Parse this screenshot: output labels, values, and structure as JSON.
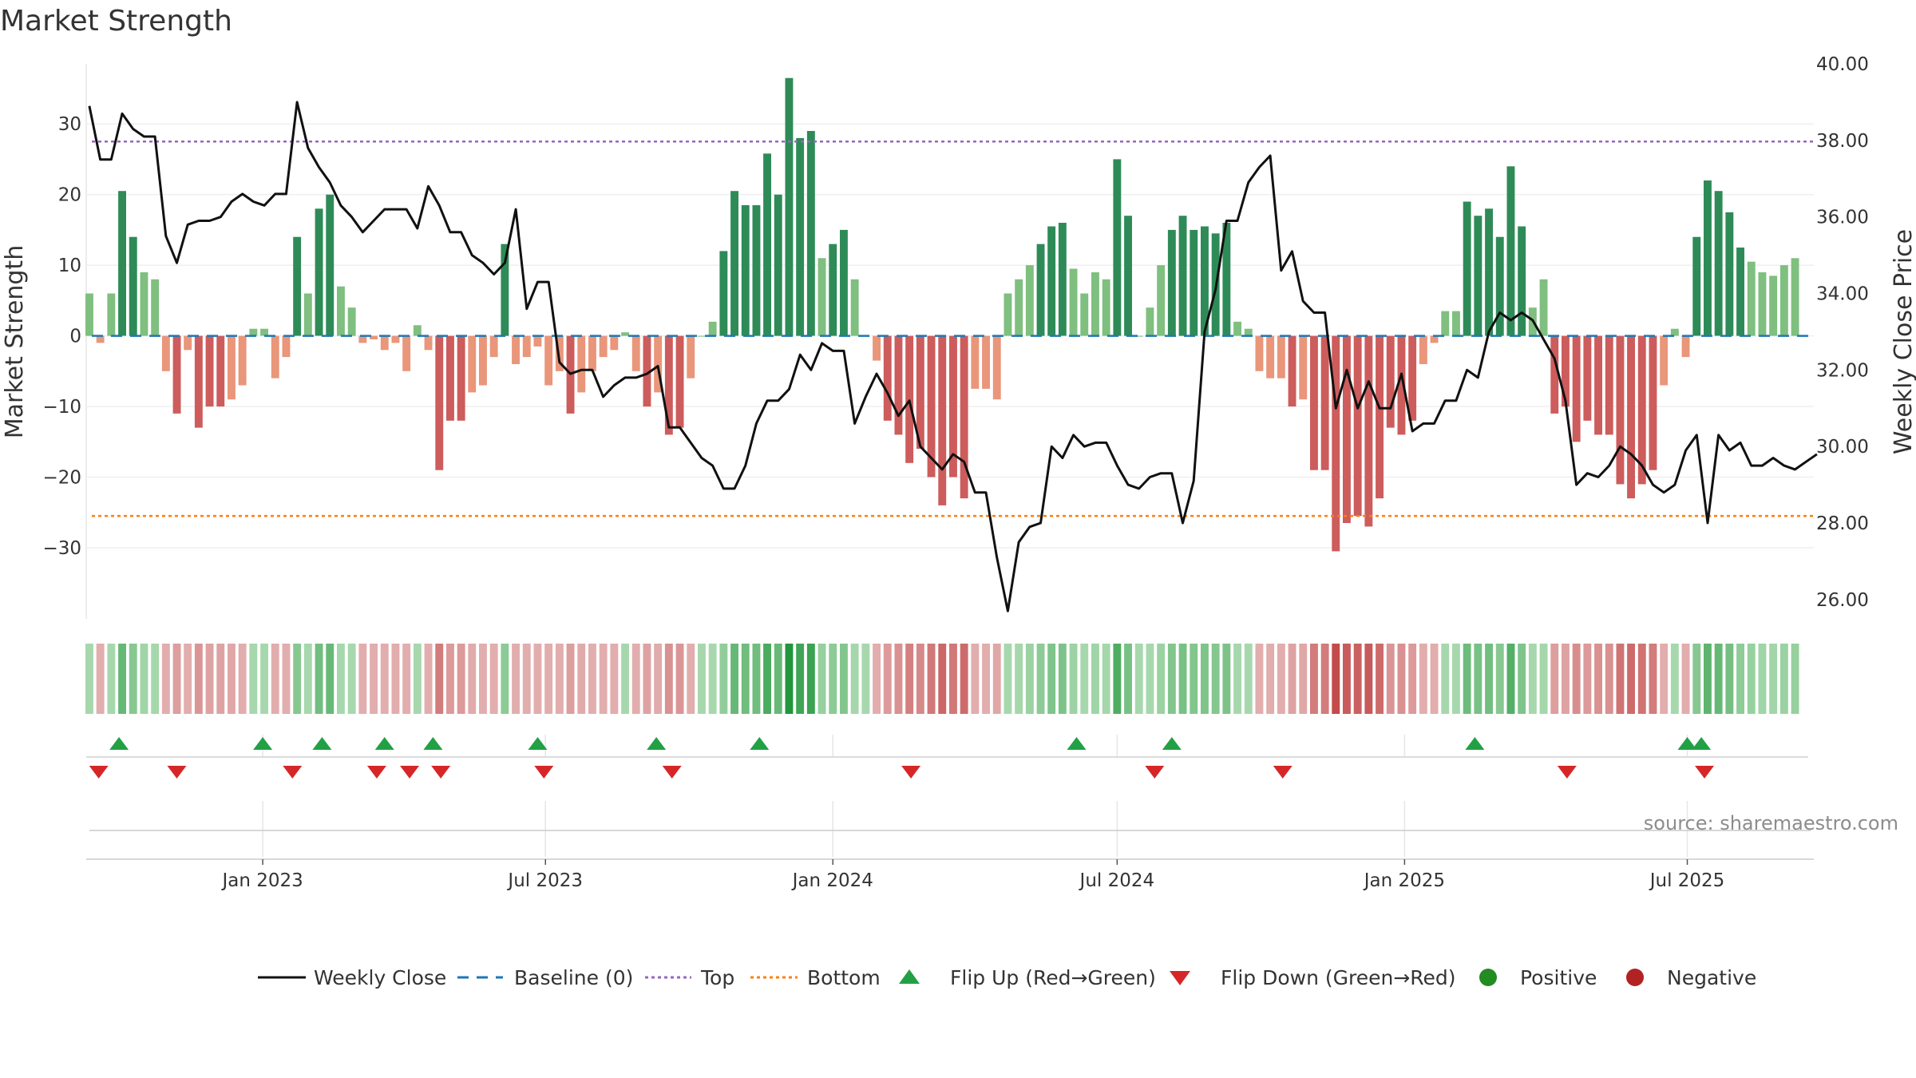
{
  "chart_data": {
    "type": "bar+line",
    "title": "Market Strength",
    "ylabel_left": "Market Strength",
    "ylabel_right": "Weekly Close Price",
    "source": "source: sharemaestro.com",
    "y_left_ticks": [
      30,
      20,
      10,
      0,
      -10,
      -20,
      -30
    ],
    "y_left_tick_labels": [
      "30",
      "20",
      "10",
      "0",
      "−10",
      "−20",
      "−30"
    ],
    "y_left_range": [
      -39.5,
      38.5
    ],
    "y_right_ticks": [
      40,
      38,
      36,
      34,
      32,
      30,
      28,
      26
    ],
    "y_right_tick_labels": [
      "40.00",
      "38.00",
      "36.00",
      "34.00",
      "32.00",
      "30.00",
      "28.00",
      "26.00"
    ],
    "y_right_range": [
      25.6,
      40.0
    ],
    "x_date_range": [
      "2022-09-10",
      "2025-09-20"
    ],
    "x_ticks": [
      {
        "date": "2023-01-01",
        "label": "Jan 2023"
      },
      {
        "date": "2023-07-01",
        "label": "Jul 2023"
      },
      {
        "date": "2024-01-01",
        "label": "Jan 2024"
      },
      {
        "date": "2024-07-01",
        "label": "Jul 2024"
      },
      {
        "date": "2025-01-01",
        "label": "Jan 2025"
      },
      {
        "date": "2025-07-01",
        "label": "Jul 2025"
      }
    ],
    "start_date": "2022-09-12",
    "week_step_days": 7,
    "top_line": 27.5,
    "bottom_line": -25.5,
    "baseline": 0,
    "strength": [
      6,
      -1,
      6,
      20.5,
      14,
      9,
      8,
      -5,
      -11,
      -2,
      -13,
      -10,
      -10,
      -9,
      -7,
      1,
      1,
      -6,
      -3,
      14,
      6,
      18,
      20,
      7,
      4,
      -1,
      -0.5,
      -2,
      -1,
      -5,
      1.5,
      -2,
      -19,
      -12,
      -12,
      -8,
      -7,
      -3,
      13,
      -4,
      -3,
      -1.5,
      -7,
      -5,
      -11,
      -8,
      -5,
      -3,
      -2,
      0.5,
      -5,
      -10,
      -8,
      -14,
      -13,
      -6,
      0,
      2,
      12,
      20.5,
      18.5,
      18.5,
      25.8,
      20,
      36.5,
      28,
      29,
      11,
      13,
      15,
      8,
      0,
      -3.5,
      -12,
      -14,
      -18,
      -16,
      -20,
      -24,
      -20,
      -23,
      -7.5,
      -7.5,
      -9,
      6,
      8,
      10,
      13,
      15.5,
      16,
      9.5,
      6,
      9,
      8,
      25,
      17,
      0,
      4,
      10,
      15,
      17,
      15,
      15.5,
      14.5,
      16,
      2,
      1,
      -5,
      -6,
      -6,
      -10,
      -9,
      -19,
      -19,
      -30.5,
      -26.5,
      -25.5,
      -27,
      -23,
      -13,
      -14,
      -12,
      -4,
      -1,
      3.5,
      3.5,
      19,
      17,
      18,
      14,
      24,
      15.5,
      4,
      8,
      -11,
      -10,
      -15,
      -12,
      -14,
      -14,
      -21,
      -23,
      -21,
      -19,
      -7,
      1,
      -3,
      14,
      22,
      20.5,
      17.5,
      12.5,
      10.5,
      9,
      8.5,
      10,
      11
    ],
    "weekly_close": [
      38.9,
      37.5,
      37.5,
      38.7,
      38.3,
      38.1,
      38.1,
      35.5,
      34.8,
      35.8,
      35.9,
      35.9,
      36,
      36.4,
      36.6,
      36.4,
      36.3,
      36.6,
      36.6,
      39.0,
      37.8,
      37.3,
      36.9,
      36.3,
      36.0,
      35.6,
      35.9,
      36.2,
      36.2,
      36.2,
      35.7,
      36.8,
      36.3,
      35.6,
      35.6,
      35.0,
      34.8,
      34.5,
      34.8,
      36.2,
      33.6,
      34.3,
      34.3,
      32.2,
      31.9,
      32.0,
      32.0,
      31.3,
      31.6,
      31.8,
      31.8,
      31.9,
      32.1,
      30.5,
      30.5,
      30.1,
      29.7,
      29.5,
      28.9,
      28.9,
      29.5,
      30.6,
      31.2,
      31.2,
      31.5,
      32.4,
      32.0,
      32.7,
      32.5,
      32.5,
      30.6,
      31.3,
      31.9,
      31.4,
      30.8,
      31.2,
      30.0,
      29.7,
      29.4,
      29.8,
      29.6,
      28.8,
      28.8,
      27.1,
      25.7,
      27.5,
      27.9,
      28.0,
      30.0,
      29.7,
      30.3,
      30.0,
      30.1,
      30.1,
      29.5,
      29.0,
      28.9,
      29.2,
      29.3,
      29.3,
      28.0,
      29.1,
      33.0,
      34.1,
      35.9,
      35.9,
      36.9,
      37.3,
      37.6,
      34.6,
      35.1,
      33.8,
      33.5,
      33.5,
      31.0,
      32.0,
      31.0,
      31.7,
      31.0,
      31.0,
      31.9,
      30.4,
      30.6,
      30.6,
      31.2,
      31.2,
      32.0,
      31.8,
      33.0,
      33.5,
      33.3,
      33.5,
      33.3,
      32.8,
      32.3,
      31.2,
      29.0,
      29.3,
      29.2,
      29.5,
      30.0,
      29.8,
      29.5,
      29.0,
      28.8,
      29.0,
      29.9,
      30.3,
      28.0,
      30.3,
      29.9,
      30.1,
      29.5,
      29.5,
      29.7,
      29.5,
      29.4,
      29.6,
      29.8
    ],
    "flip_up_dates": [
      "2022-10-01",
      "2023-01-01",
      "2023-02-08",
      "2023-03-20",
      "2023-04-20",
      "2023-06-26",
      "2023-09-10",
      "2023-11-15",
      "2024-06-05",
      "2024-08-05",
      "2025-02-15",
      "2025-07-01",
      "2025-07-10"
    ],
    "flip_down_dates": [
      "2022-09-18",
      "2022-11-07",
      "2023-01-20",
      "2023-03-15",
      "2023-04-05",
      "2023-04-25",
      "2023-06-30",
      "2023-09-20",
      "2024-02-20",
      "2024-07-25",
      "2024-10-15",
      "2025-04-15",
      "2025-07-12"
    ],
    "colors": {
      "strong_green": "#2e8b57",
      "light_green": "#7fbf7f",
      "strong_red": "#cd5c5c",
      "light_red": "#e9967a",
      "line": "#111111",
      "baseline": "#1f77b4",
      "top": "#9467bd",
      "bottom": "#ff7f0e",
      "flip_up": "#22a045",
      "flip_down": "#d62728",
      "positive": "#228b22",
      "negative": "#b22222"
    }
  },
  "legend": {
    "weekly_close": "Weekly Close",
    "baseline": "Baseline (0)",
    "top": "Top",
    "bottom": "Bottom",
    "flip_up": "Flip Up (Red→Green)",
    "flip_down": "Flip Down (Green→Red)",
    "positive": "Positive",
    "negative": "Negative"
  }
}
